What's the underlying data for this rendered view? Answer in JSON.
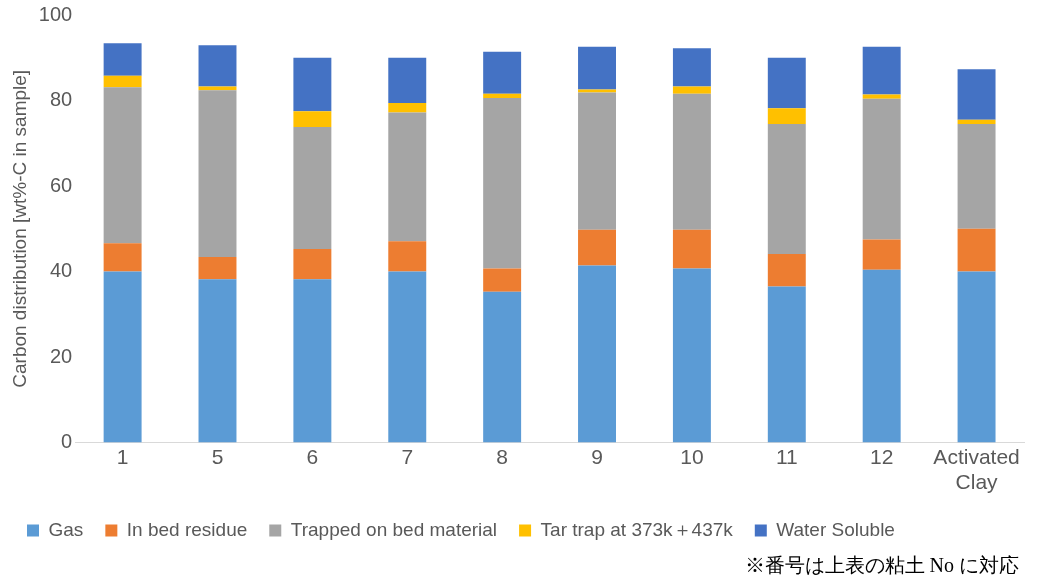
{
  "chart_data": {
    "type": "bar",
    "stacked": true,
    "ylabel": "Carbon distribution [wt%-C in sample]",
    "categories": [
      "1",
      "5",
      "6",
      "7",
      "8",
      "9",
      "10",
      "11",
      "12",
      "Activated Clay"
    ],
    "series": [
      {
        "name": "Gas",
        "color": "#5b9bd5",
        "values": [
          40,
          38.2,
          38.2,
          40,
          35.3,
          41.4,
          40.7,
          36.5,
          40.4,
          40
        ]
      },
      {
        "name": "In bed residue",
        "color": "#ed7d31",
        "values": [
          6.6,
          5.2,
          7.1,
          7.1,
          5.4,
          8.4,
          9.1,
          7.6,
          7.1,
          10
        ]
      },
      {
        "name": "Trapped on bed material",
        "color": "#a5a5a5",
        "values": [
          36.5,
          39,
          28.5,
          30.1,
          39.9,
          32.1,
          31.8,
          30.4,
          32.9,
          24.5
        ]
      },
      {
        "name": "Tar trap at 373k＋437k",
        "color": "#ffc000",
        "values": [
          2.7,
          0.9,
          3.7,
          2.2,
          1,
          0.7,
          1.7,
          3.7,
          1,
          1
        ]
      },
      {
        "name": "Water Soluble",
        "color": "#4472c4",
        "values": [
          7.6,
          9.6,
          12.5,
          10.6,
          9.8,
          10,
          8.9,
          11.8,
          11.2,
          11.8
        ]
      }
    ],
    "ylim": [
      0,
      100
    ],
    "yticks": [
      0,
      20,
      40,
      60,
      80,
      100
    ],
    "grid": false,
    "legend": "bottom",
    "annotations": [
      "※番号は上表の粘土 No に対応"
    ]
  }
}
